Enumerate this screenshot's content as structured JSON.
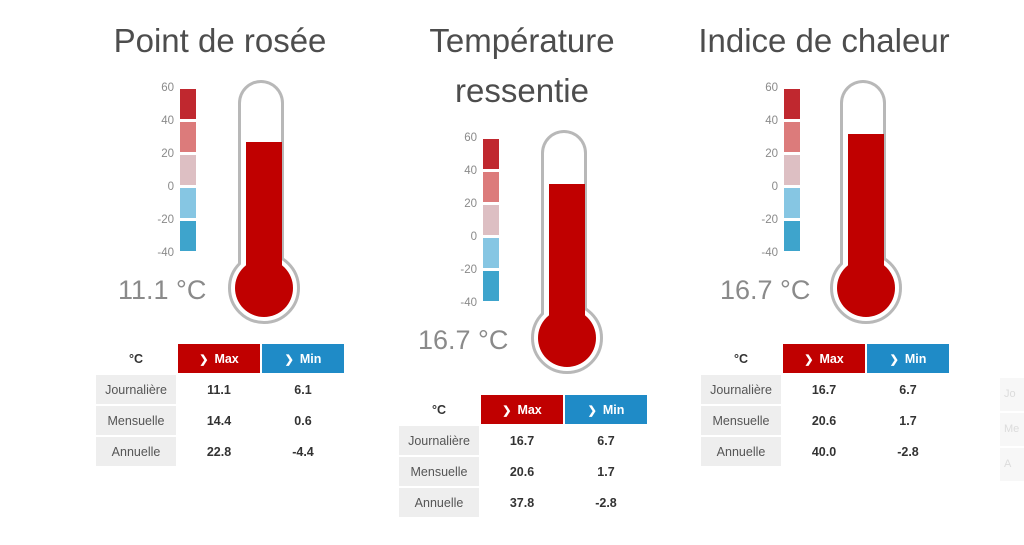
{
  "colors": {
    "max_red": "#c00000",
    "min_blue": "#1f8bc7",
    "scale": [
      "#c0282f",
      "#dc7b7b",
      "#ddbfc3",
      "#86c6e3",
      "#3ea4cc"
    ]
  },
  "scale_ticks": [
    "60",
    "40",
    "20",
    "0",
    "-20",
    "-40"
  ],
  "table_headers": {
    "unit": "°C",
    "max": "Max",
    "min": "Min"
  },
  "row_labels": [
    "Journalière",
    "Mensuelle",
    "Annuelle"
  ],
  "panels": [
    {
      "title_lines": [
        "Point de rosée"
      ],
      "reading": "11.1 °C",
      "fill_fraction": 0.72,
      "rows": [
        [
          "11.1",
          "6.1"
        ],
        [
          "14.4",
          "0.6"
        ],
        [
          "22.8",
          "-4.4"
        ]
      ]
    },
    {
      "title_lines": [
        "Température",
        "ressentie"
      ],
      "reading": "16.7 °C",
      "fill_fraction": 0.76,
      "rows": [
        [
          "16.7",
          "6.7"
        ],
        [
          "20.6",
          "1.7"
        ],
        [
          "37.8",
          "-2.8"
        ]
      ]
    },
    {
      "title_lines": [
        "Indice de chaleur"
      ],
      "reading": "16.7 °C",
      "fill_fraction": 0.76,
      "rows": [
        [
          "16.7",
          "6.7"
        ],
        [
          "20.6",
          "1.7"
        ],
        [
          "40.0",
          "-2.8"
        ]
      ]
    }
  ],
  "cutoff_labels": [
    "Jo",
    "Me",
    "A"
  ]
}
